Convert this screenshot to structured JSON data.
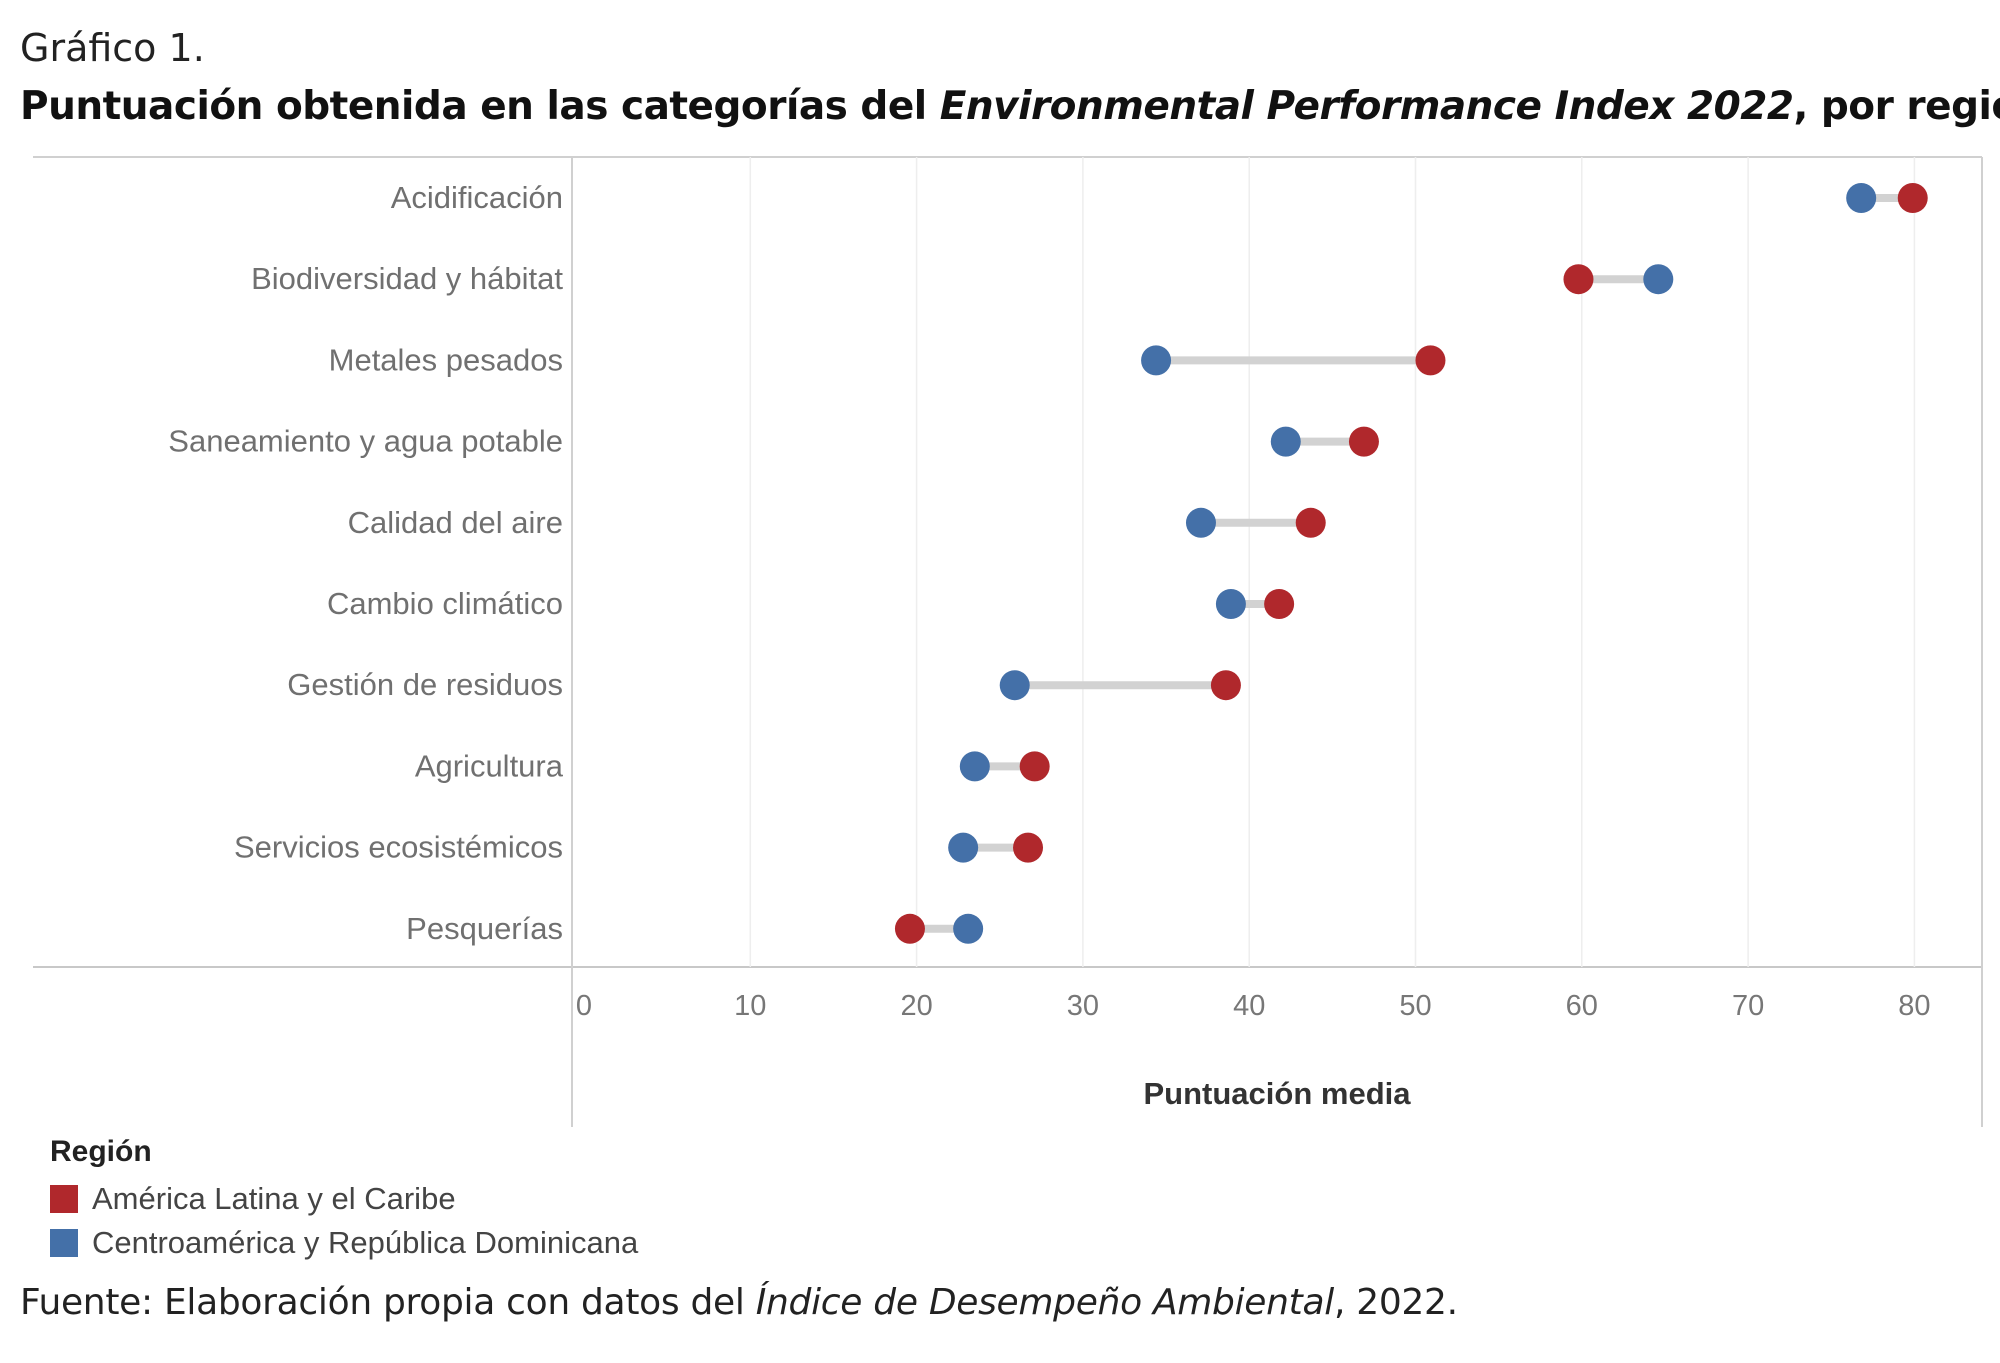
{
  "figure_label": "Gráfico 1.",
  "title": {
    "part1": "Puntuación obtenida en las categorías del ",
    "italic": "Environmental Performance Index 2022",
    "part2": ", por región"
  },
  "chart_data": {
    "type": "dumbbell",
    "xlabel": "Puntuación media",
    "xlim": [
      0,
      85
    ],
    "xticks": [
      0,
      10,
      20,
      30,
      40,
      50,
      60,
      70,
      80
    ],
    "categories": [
      "Acidificación",
      "Biodiversidad y hábitat",
      "Metales pesados",
      "Saneamiento y agua potable",
      "Calidad del aire",
      "Cambio climático",
      "Gestión de residuos",
      "Agricultura",
      "Servicios ecosistémicos",
      "Pesquerías"
    ],
    "series": [
      {
        "name": "América Latina y el Caribe",
        "color": "#b0282c",
        "values": [
          79.9,
          59.8,
          50.9,
          46.9,
          43.7,
          41.8,
          38.6,
          27.1,
          26.7,
          19.6
        ]
      },
      {
        "name": "Centroamérica y República Dominicana",
        "color": "#4470a8",
        "values": [
          76.8,
          64.6,
          34.4,
          42.2,
          37.1,
          38.9,
          25.9,
          23.5,
          22.8,
          23.1
        ]
      }
    ]
  },
  "legend": {
    "title": "Región",
    "items": [
      {
        "label": "América Latina y el Caribe",
        "color": "#b0282c"
      },
      {
        "label": "Centroamérica y República Dominicana",
        "color": "#4470a8"
      }
    ]
  },
  "source": {
    "part1": "Fuente: Elaboración propia con datos del ",
    "italic": "Índice de Desempeño Ambiental",
    "part2": ", 2022."
  }
}
